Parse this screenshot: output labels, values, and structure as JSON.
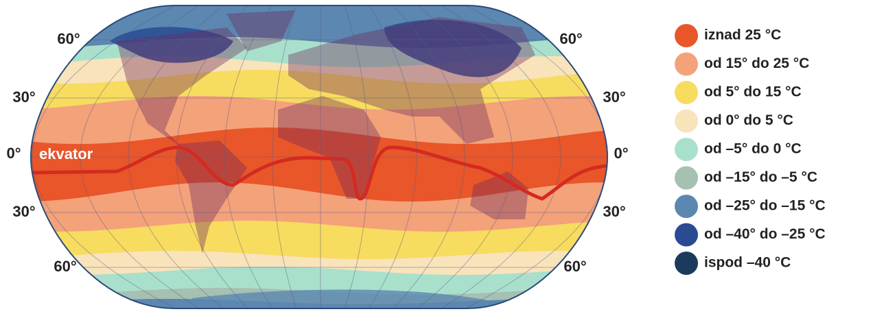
{
  "latitude_labels": {
    "left": [
      "60°",
      "30°",
      "0°",
      "30°",
      "60°"
    ],
    "right": [
      "60°",
      "30°",
      "0°",
      "30°",
      "60°"
    ]
  },
  "equator_label": "ekvator",
  "legend": [
    {
      "label": "iznad 25 °C",
      "color": "#e8562a"
    },
    {
      "label": "od 15° do 25 °C",
      "color": "#f4a27a"
    },
    {
      "label": "od 5° do 15 °C",
      "color": "#f7dc5f"
    },
    {
      "label": "od 0° do 5 °C",
      "color": "#f8e3bb"
    },
    {
      "label": "od –5° do 0 °C",
      "color": "#a9e0cc"
    },
    {
      "label": "od –15° do –5 °C",
      "color": "#a6c0b2"
    },
    {
      "label": "od –25° do –15 °C",
      "color": "#5b87b0"
    },
    {
      "label": "od –40° do –25 °C",
      "color": "#2a4b92"
    },
    {
      "label": "ispod –40 °C",
      "color": "#1c3a5c"
    }
  ]
}
